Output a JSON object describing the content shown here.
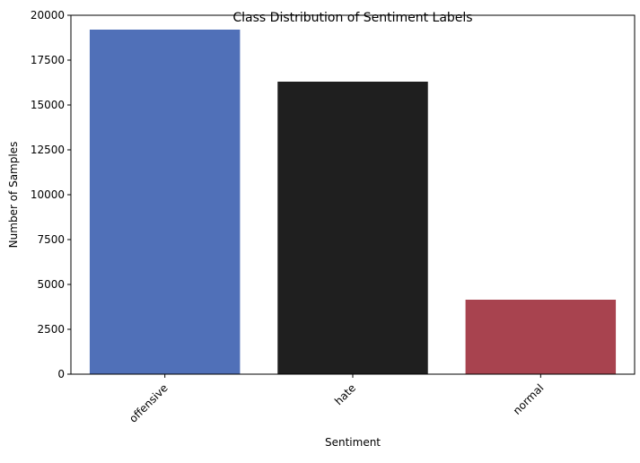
{
  "chart_data": {
    "type": "bar",
    "title": "Class Distribution of Sentiment Labels",
    "xlabel": "Sentiment",
    "ylabel": "Number of Samples",
    "categories": [
      "offensive",
      "hate",
      "normal"
    ],
    "values": [
      19200,
      16300,
      4150
    ],
    "colors": [
      "#5070b8",
      "#1f1f1f",
      "#a8434f"
    ],
    "ylim": [
      0,
      20000
    ],
    "yticks": [
      0,
      2500,
      5000,
      7500,
      10000,
      12500,
      15000,
      17500,
      20000
    ],
    "xtick_rotation": 45,
    "grid": false,
    "legend": "none"
  }
}
